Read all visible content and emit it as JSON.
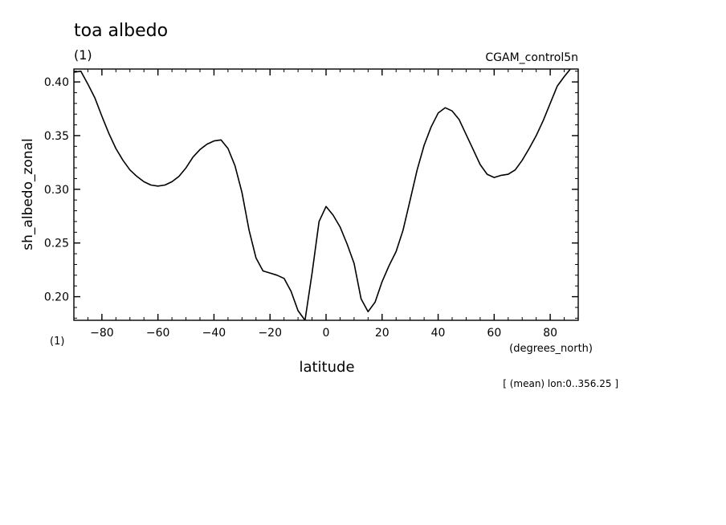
{
  "title": "toa albedo",
  "subtitle_left": "(1)",
  "subtitle_right": "CGAM_control5n",
  "y_unit_label": "(1)",
  "x_unit_label": "(degrees_north)",
  "footer_note": "[ (mean) lon:0..356.25 ]",
  "chart_data": {
    "type": "line",
    "title": "toa albedo",
    "xlabel": "latitude",
    "ylabel": "sh_albedo_zonal",
    "xlim": [
      -90,
      90
    ],
    "ylim": [
      0.178,
      0.412
    ],
    "xticks": [
      -80,
      -60,
      -40,
      -20,
      0,
      20,
      40,
      60,
      80
    ],
    "yticks": [
      0.2,
      0.25,
      0.3,
      0.35,
      0.4
    ],
    "xtick_labels": [
      "−80",
      "−60",
      "−40",
      "−20",
      "0",
      "20",
      "40",
      "60",
      "80"
    ],
    "ytick_labels": [
      "0.20",
      "0.25",
      "0.30",
      "0.35",
      "0.40"
    ],
    "grid": false,
    "series": [
      {
        "x": [
          -90,
          -87.5,
          -85,
          -82.5,
          -80,
          -77.5,
          -75,
          -72.5,
          -70,
          -67.5,
          -65,
          -62.5,
          -60,
          -57.5,
          -55,
          -52.5,
          -50,
          -47.5,
          -45,
          -42.5,
          -40,
          -37.5,
          -35,
          -32.5,
          -30,
          -27.5,
          -25,
          -22.5,
          -20,
          -17.5,
          -15,
          -12.5,
          -10,
          -7.5,
          -5,
          -2.5,
          0,
          2.5,
          5,
          7.5,
          10,
          12.5,
          15,
          17.5,
          20,
          22.5,
          25,
          27.5,
          30,
          32.5,
          35,
          37.5,
          40,
          42.5,
          45,
          47.5,
          50,
          52.5,
          55,
          57.5,
          60,
          62.5,
          65,
          67.5,
          70,
          72.5,
          75,
          77.5,
          80,
          82.5,
          85,
          87.5,
          90
        ],
        "y": [
          0.409,
          0.41,
          0.398,
          0.385,
          0.368,
          0.352,
          0.338,
          0.327,
          0.318,
          0.312,
          0.307,
          0.304,
          0.303,
          0.304,
          0.307,
          0.312,
          0.32,
          0.33,
          0.337,
          0.342,
          0.345,
          0.346,
          0.338,
          0.322,
          0.297,
          0.262,
          0.236,
          0.224,
          0.222,
          0.22,
          0.217,
          0.205,
          0.187,
          0.178,
          0.222,
          0.27,
          0.284,
          0.276,
          0.265,
          0.249,
          0.231,
          0.198,
          0.186,
          0.195,
          0.214,
          0.229,
          0.242,
          0.262,
          0.29,
          0.318,
          0.341,
          0.358,
          0.371,
          0.376,
          0.373,
          0.365,
          0.351,
          0.337,
          0.323,
          0.314,
          0.311,
          0.313,
          0.314,
          0.318,
          0.327,
          0.338,
          0.35,
          0.364,
          0.38,
          0.396,
          0.405,
          0.413,
          0.413
        ]
      }
    ]
  }
}
